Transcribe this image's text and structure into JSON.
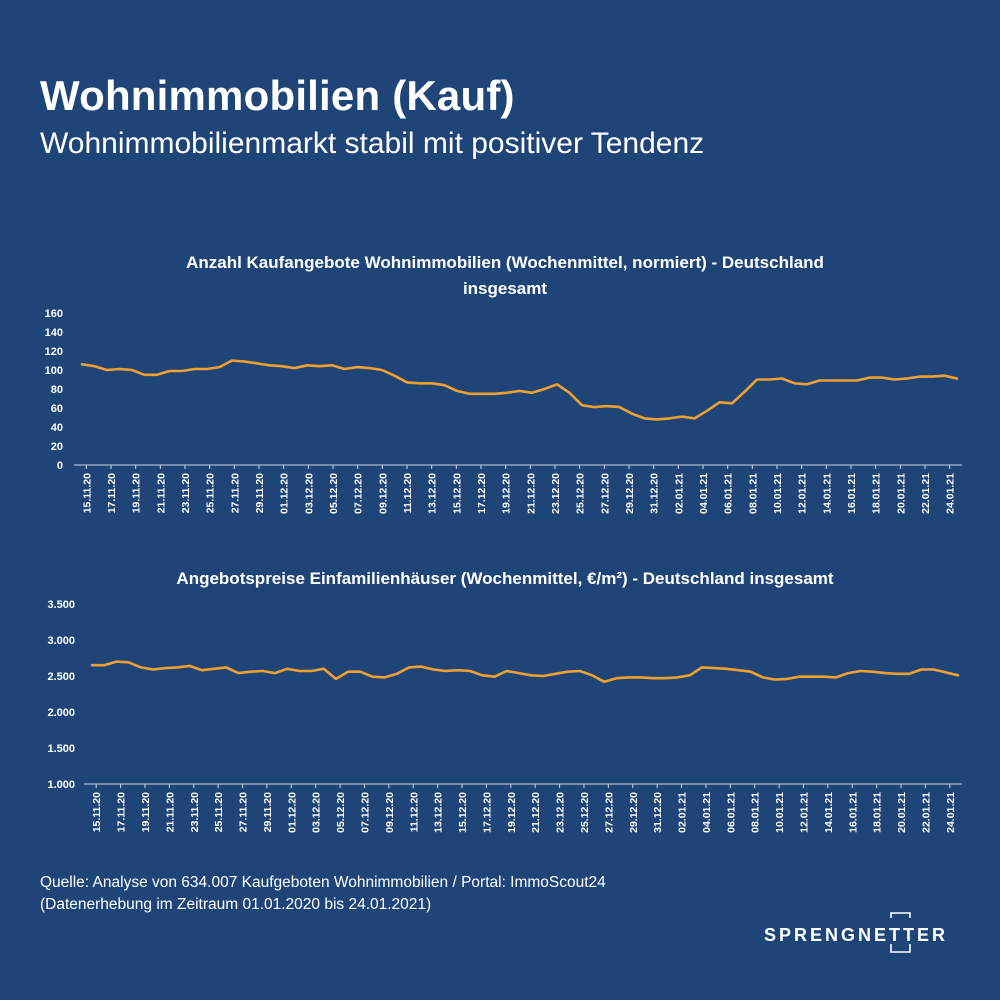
{
  "header": {
    "title": "Wohnimmobilien (Kauf)",
    "subtitle": "Wohnimmobilienmarkt stabil mit positiver Tendenz"
  },
  "footer": {
    "source_line1": "Quelle: Analyse von 634.007 Kaufgeboten Wohnimmobilien / Portal: ImmoScout24",
    "source_line2": "(Datenerhebung im Zeitraum 01.01.2020 bis 24.01.2021)"
  },
  "logo": {
    "text": "SPRENGNETTER"
  },
  "colors": {
    "background": "#1f4578",
    "series": "#f0a030",
    "text": "#ffffff"
  },
  "chart_data": [
    {
      "type": "line",
      "title": "Anzahl Kaufangebote Wohnimmobilien (Wochenmittel, normiert) - Deutschland insgesamt",
      "ylim": [
        0,
        160
      ],
      "yticks": [
        "0",
        "20",
        "40",
        "60",
        "80",
        "100",
        "120",
        "140",
        "160"
      ],
      "ytick_values": [
        0,
        20,
        40,
        60,
        80,
        100,
        120,
        140,
        160
      ],
      "xtick_labels": [
        "15.11.20",
        "17.11.20",
        "19.11.20",
        "21.11.20",
        "23.11.20",
        "25.11.20",
        "27.11.20",
        "29.11.20",
        "01.12.20",
        "03.12.20",
        "05.12.20",
        "07.12.20",
        "09.12.20",
        "11.12.20",
        "13.12.20",
        "15.12.20",
        "17.12.20",
        "19.12.20",
        "21.12.20",
        "23.12.20",
        "25.12.20",
        "27.12.20",
        "29.12.20",
        "31.12.20",
        "02.01.21",
        "04.01.21",
        "06.01.21",
        "08.01.21",
        "10.01.21",
        "12.01.21",
        "14.01.21",
        "16.01.21",
        "18.01.21",
        "20.01.21",
        "22.01.21",
        "24.01.21"
      ],
      "values": [
        106,
        104,
        100,
        101,
        100,
        95,
        95,
        99,
        99,
        101,
        101,
        103,
        110,
        109,
        107,
        105,
        104,
        102,
        105,
        104,
        105,
        101,
        103,
        102,
        100,
        94,
        87,
        86,
        86,
        84,
        78,
        75,
        75,
        75,
        76,
        78,
        76,
        80,
        85,
        76,
        63,
        61,
        62,
        61,
        54,
        49,
        48,
        49,
        51,
        49,
        57,
        66,
        65,
        77,
        90,
        90,
        91,
        86,
        85,
        89,
        89,
        89,
        89,
        92,
        92,
        90,
        91,
        93,
        93,
        94,
        91
      ],
      "grid": false,
      "legend": "none"
    },
    {
      "type": "line",
      "title": "Angebotspreise Einfamilienhäuser (Wochenmittel, €/m²) - Deutschland insgesamt",
      "ylim": [
        1000,
        3500
      ],
      "yticks": [
        "1.000",
        "1.500",
        "2.000",
        "2.500",
        "3.000",
        "3.500"
      ],
      "ytick_values": [
        1000,
        1500,
        2000,
        2500,
        3000,
        3500
      ],
      "xtick_labels": [
        "15.11.20",
        "17.11.20",
        "19.11.20",
        "21.11.20",
        "23.11.20",
        "25.11.20",
        "27.11.20",
        "29.11.20",
        "01.12.20",
        "03.12.20",
        "05.12.20",
        "07.12.20",
        "09.12.20",
        "11.12.20",
        "13.12.20",
        "15.12.20",
        "17.12.20",
        "19.12.20",
        "21.12.20",
        "23.12.20",
        "25.12.20",
        "27.12.20",
        "29.12.20",
        "31.12.20",
        "02.01.21",
        "04.01.21",
        "06.01.21",
        "08.01.21",
        "10.01.21",
        "12.01.21",
        "14.01.21",
        "16.01.21",
        "18.01.21",
        "20.01.21",
        "22.01.21",
        "24.01.21"
      ],
      "values": [
        2650,
        2650,
        2700,
        2690,
        2620,
        2590,
        2610,
        2620,
        2640,
        2580,
        2600,
        2620,
        2540,
        2560,
        2570,
        2540,
        2600,
        2570,
        2570,
        2600,
        2460,
        2560,
        2560,
        2490,
        2480,
        2530,
        2620,
        2630,
        2590,
        2570,
        2580,
        2570,
        2510,
        2490,
        2570,
        2540,
        2510,
        2500,
        2530,
        2560,
        2570,
        2510,
        2420,
        2470,
        2480,
        2480,
        2470,
        2470,
        2480,
        2510,
        2620,
        2610,
        2600,
        2580,
        2560,
        2480,
        2450,
        2460,
        2490,
        2490,
        2490,
        2480,
        2540,
        2570,
        2560,
        2540,
        2530,
        2530,
        2590,
        2590,
        2550,
        2510
      ],
      "grid": false,
      "legend": "none"
    }
  ]
}
